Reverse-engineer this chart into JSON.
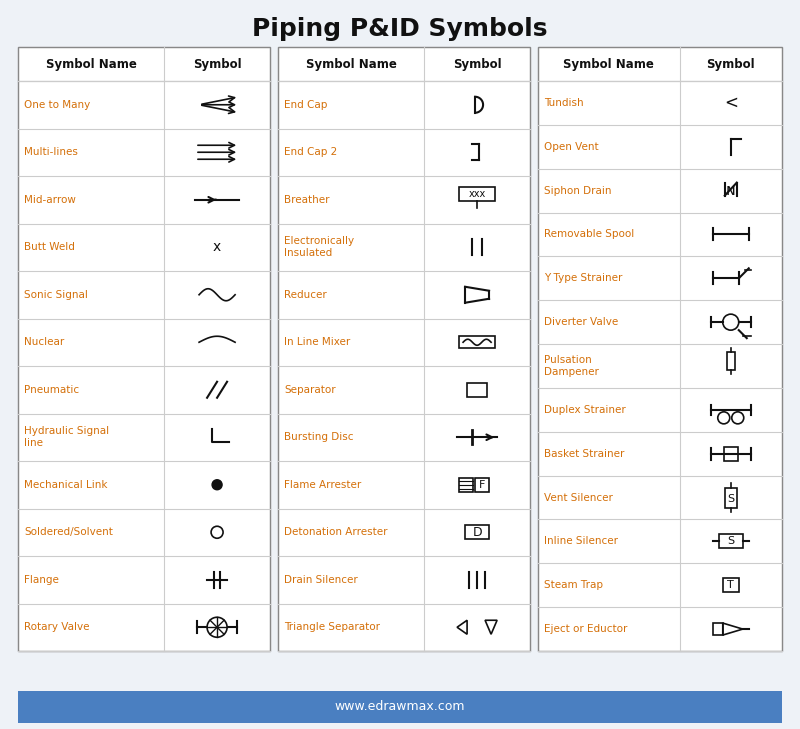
{
  "title": "Piping P&ID Symbols",
  "background_color": "#eef2f7",
  "table_bg": "#ffffff",
  "header_bg": "#ffffff",
  "header_text_color": "#000000",
  "name_text_color": "#d4700a",
  "symbol_text_color": "#000000",
  "border_color": "#cccccc",
  "footer_bg": "#4a7fc1",
  "footer_text": "www.edrawmax.com",
  "footer_text_color": "#ffffff",
  "col1_names": [
    "One to Many",
    "Multi-lines",
    "Mid-arrow",
    "Butt Weld",
    "Sonic Signal",
    "Nuclear",
    "Pneumatic",
    "Hydraulic Signal\nline",
    "Mechanical Link",
    "Soldered/Solvent",
    "Flange",
    "Rotary Valve"
  ],
  "col2_names": [
    "End Cap",
    "End Cap 2",
    "Breather",
    "Electronically\nInsulated",
    "Reducer",
    "In Line Mixer",
    "Separator",
    "Bursting Disc",
    "Flame Arrester",
    "Detonation Arrester",
    "Drain Silencer",
    "Triangle Separator"
  ],
  "col3_names": [
    "Tundish",
    "Open Vent",
    "Siphon Drain",
    "Removable Spool",
    "Y Type Strainer",
    "Diverter Valve",
    "Pulsation\nDampener",
    "Duplex Strainer",
    "Basket Strainer",
    "Vent Silencer",
    "Inline Silencer",
    "Steam Trap",
    "Eject or Eductor"
  ]
}
